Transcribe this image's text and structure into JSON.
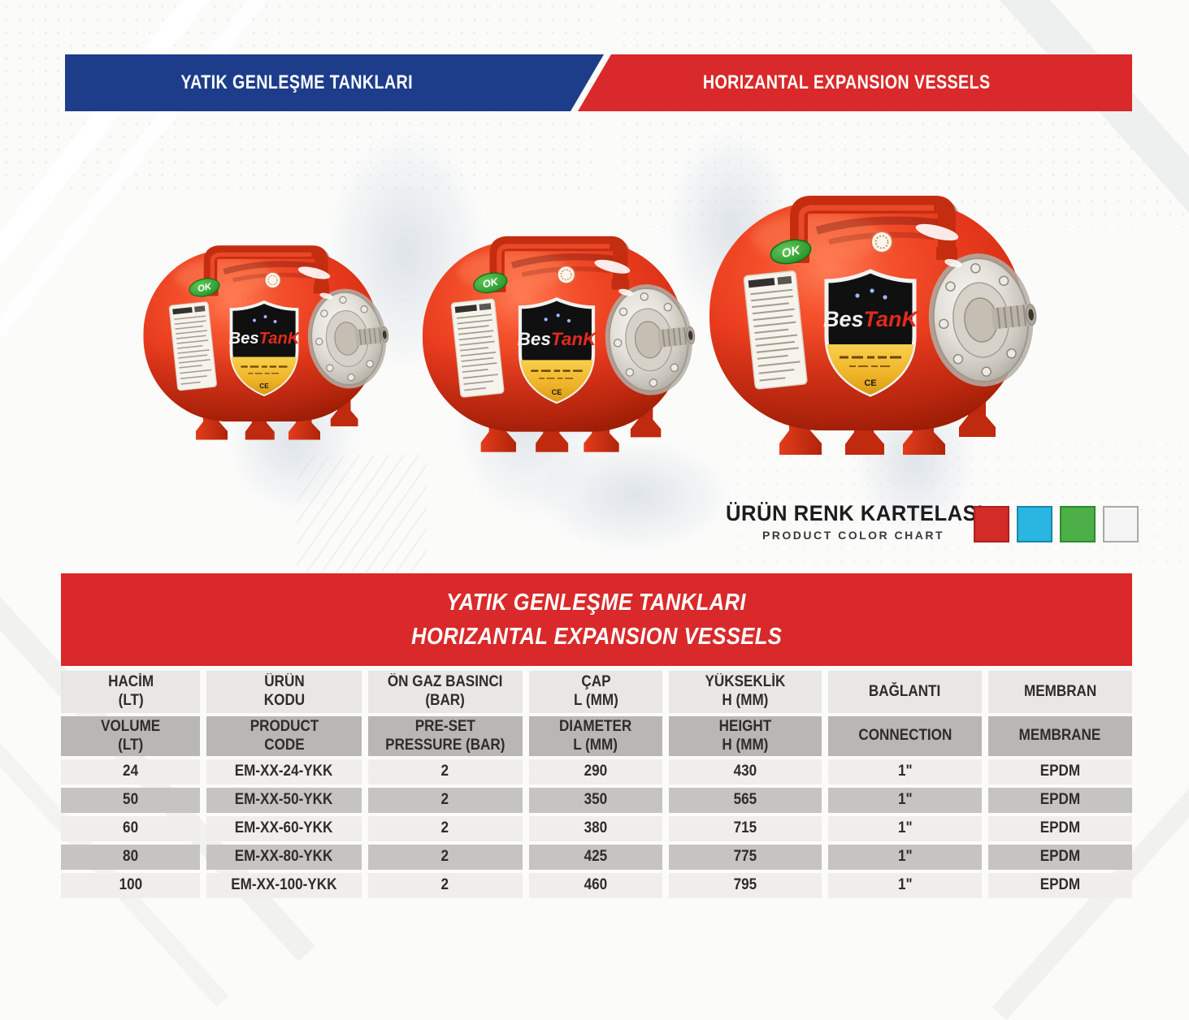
{
  "header": {
    "title_tr": "YATIK GENLEŞME TANKLARI",
    "title_en": "HORIZANTAL EXPANSION VESSELS"
  },
  "brand": {
    "badge_bes": "Bes",
    "badge_tank": "TanK",
    "ok_sticker": "OK",
    "ce_mark": "CE"
  },
  "color_chart": {
    "title_tr": "ÜRÜN RENK KARTELASI",
    "title_en": "PRODUCT COLOR CHART",
    "swatches": [
      {
        "name": "red",
        "hex": "#d32b27",
        "border": "#a82220"
      },
      {
        "name": "cyan",
        "hex": "#29b6e0",
        "border": "#1b87aa"
      },
      {
        "name": "green",
        "hex": "#4caf48",
        "border": "#2f8b2c"
      },
      {
        "name": "white",
        "hex": "#f5f5f5",
        "border": "#a9a9a9"
      }
    ]
  },
  "table_banner": {
    "line1": "YATIK GENLEŞME TANKLARI",
    "line2": "HORIZANTAL EXPANSION VESSELS"
  },
  "spec_table": {
    "headers_tr": [
      "HACİM\n(LT)",
      "ÜRÜN\nKODU",
      "ÖN GAZ BASINCI\n(BAR)",
      "ÇAP\nL (MM)",
      "YÜKSEKLİK\nH (MM)",
      "BAĞLANTI",
      "MEMBRAN"
    ],
    "headers_en": [
      "VOLUME\n(LT)",
      "PRODUCT\nCODE",
      "PRE-SET\nPRESSURE (BAR)",
      "DIAMETER\nL (MM)",
      "HEIGHT\nH (MM)",
      "CONNECTION",
      "MEMBRANE"
    ],
    "rows": [
      [
        "24",
        "EM-XX-24-YKK",
        "2",
        "290",
        "430",
        "1\"",
        "EPDM"
      ],
      [
        "50",
        "EM-XX-50-YKK",
        "2",
        "350",
        "565",
        "1\"",
        "EPDM"
      ],
      [
        "60",
        "EM-XX-60-YKK",
        "2",
        "380",
        "715",
        "1\"",
        "EPDM"
      ],
      [
        "80",
        "EM-XX-80-YKK",
        "2",
        "425",
        "775",
        "1\"",
        "EPDM"
      ],
      [
        "100",
        "EM-XX-100-YKK",
        "2",
        "460",
        "795",
        "1\"",
        "EPDM"
      ]
    ]
  },
  "colors": {
    "banner_blue": "#1d3d8b",
    "banner_red": "#d9292a",
    "tank_body_red": "#e73a1d",
    "header_row1_bg": "#e8e7e5",
    "header_row2_bg": "#b9b7b5",
    "row_light_bg": "#efeeec",
    "row_dark_bg": "#c6c4c2"
  }
}
